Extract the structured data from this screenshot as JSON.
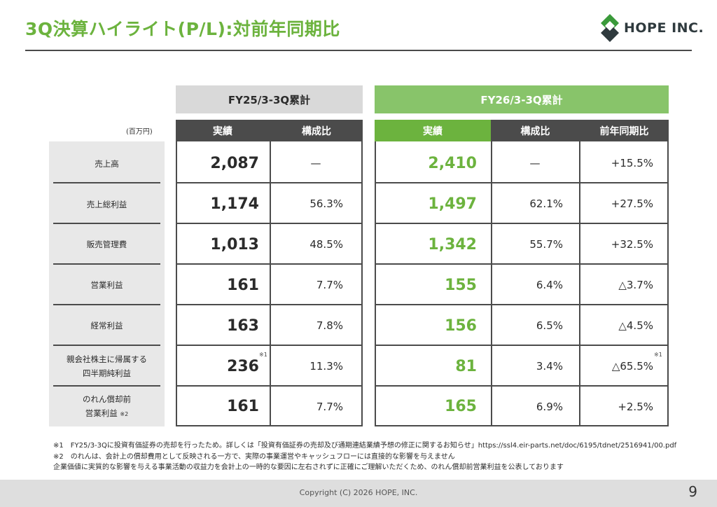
{
  "title": "3Q決算ハイライト(P/L):対前年同期比",
  "logo": {
    "text": "HOPE INC."
  },
  "periods": {
    "prev": "FY25/3-3Q累計",
    "current": "FY26/3-3Q累計"
  },
  "unit": "(百万円)",
  "headers": {
    "prev_actual": "実績",
    "prev_ratio": "構成比",
    "cur_actual": "実績",
    "cur_ratio": "構成比",
    "cur_yoy": "前年同期比"
  },
  "rows": [
    {
      "label": "売上高",
      "prev_actual": "2,087",
      "prev_ratio": "—",
      "cur_actual": "2,410",
      "cur_ratio": "—",
      "cur_yoy": "+15.5%"
    },
    {
      "label": "売上総利益",
      "prev_actual": "1,174",
      "prev_ratio": "56.3%",
      "cur_actual": "1,497",
      "cur_ratio": "62.1%",
      "cur_yoy": "+27.5%"
    },
    {
      "label": "販売管理費",
      "prev_actual": "1,013",
      "prev_ratio": "48.5%",
      "cur_actual": "1,342",
      "cur_ratio": "55.7%",
      "cur_yoy": "+32.5%"
    },
    {
      "label": "営業利益",
      "prev_actual": "161",
      "prev_ratio": "7.7%",
      "cur_actual": "155",
      "cur_ratio": "6.4%",
      "cur_yoy": "△3.7%"
    },
    {
      "label": "経常利益",
      "prev_actual": "163",
      "prev_ratio": "7.8%",
      "cur_actual": "156",
      "cur_ratio": "6.5%",
      "cur_yoy": "△4.5%"
    },
    {
      "label_line1": "親会社株主に帰属する",
      "label_line2": "四半期純利益",
      "prev_actual": "236",
      "prev_actual_mark": "※1",
      "prev_ratio": "11.3%",
      "cur_actual": "81",
      "cur_ratio": "3.4%",
      "cur_yoy": "△65.5%",
      "cur_yoy_mark": "※1"
    },
    {
      "label_line1": "のれん償却前",
      "label_line2": "営業利益",
      "label_mark": "※2",
      "prev_actual": "161",
      "prev_ratio": "7.7%",
      "cur_actual": "165",
      "cur_ratio": "6.9%",
      "cur_yoy": "+2.5%"
    }
  ],
  "notes": [
    "※1　FY25/3-3Qに投資有価証券の売却を行ったため。詳しくは「投資有価証券の売却及び通期連結業績予想の修正に関するお知らせ」https://ssl4.eir-parts.net/doc/6195/tdnet/2516941/00.pdf",
    "※2　のれんは、会計上の償却費用として反映される一方で、実際の事業運営やキャッシュフローには直接的な影響を与えません",
    "企業価値に実質的な影響を与える事業活動の収益力を会計上の一時的な要因に左右されずに正確にご理解いただくため、のれん償却前営業利益を公表しております"
  ],
  "footer": {
    "copyright": "Copyright (C) 2026 HOPE, INC.",
    "page": "9"
  },
  "colors": {
    "accent": "#6cb33e",
    "accent_light": "#88c46a",
    "header_dark": "#4b4b4b",
    "label_bg": "#e8e8e8"
  }
}
